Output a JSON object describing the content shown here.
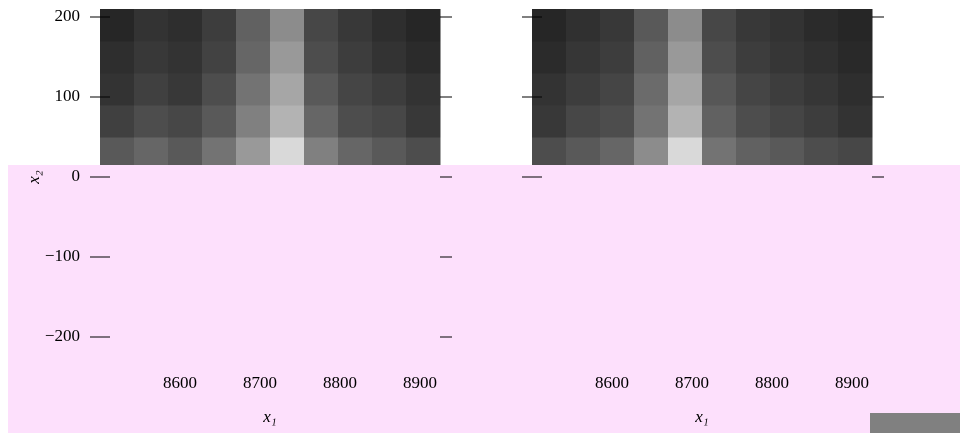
{
  "chart_data": [
    {
      "type": "heatmap",
      "ylabel": "x₂",
      "xlabel": "x₁",
      "x_edges": [
        8500,
        8542.5,
        8585,
        8627.5,
        8670,
        8712.5,
        8755,
        8797.5,
        8840,
        8882.5,
        8925
      ],
      "y_edges": [
        10,
        50,
        90,
        130,
        170,
        210
      ],
      "z": [
        [
          0.35,
          0.4,
          0.35,
          0.45,
          0.6,
          0.85,
          0.5,
          0.4,
          0.35,
          0.3
        ],
        [
          0.25,
          0.3,
          0.28,
          0.35,
          0.5,
          0.7,
          0.4,
          0.3,
          0.28,
          0.22
        ],
        [
          0.2,
          0.25,
          0.22,
          0.3,
          0.45,
          0.65,
          0.35,
          0.27,
          0.24,
          0.2
        ],
        [
          0.18,
          0.22,
          0.2,
          0.26,
          0.4,
          0.6,
          0.3,
          0.24,
          0.2,
          0.17
        ],
        [
          0.15,
          0.2,
          0.18,
          0.24,
          0.38,
          0.55,
          0.28,
          0.22,
          0.18,
          0.15
        ]
      ],
      "xticks": [
        8600,
        8700,
        8800,
        8900
      ],
      "yticks": [
        {
          "value": -200,
          "label": "−200"
        },
        {
          "value": -100,
          "label": "−100"
        },
        0,
        100,
        200
      ]
    },
    {
      "type": "heatmap",
      "xlabel": "x₁",
      "x_edges": [
        8500,
        8542.5,
        8585,
        8627.5,
        8670,
        8712.5,
        8755,
        8797.5,
        8840,
        8882.5,
        8925
      ],
      "y_edges": [
        10,
        50,
        90,
        130,
        170,
        210
      ],
      "z": [
        [
          0.3,
          0.35,
          0.4,
          0.55,
          0.85,
          0.45,
          0.38,
          0.35,
          0.3,
          0.28
        ],
        [
          0.22,
          0.28,
          0.3,
          0.45,
          0.7,
          0.38,
          0.3,
          0.27,
          0.24,
          0.2
        ],
        [
          0.2,
          0.24,
          0.27,
          0.42,
          0.65,
          0.34,
          0.27,
          0.24,
          0.21,
          0.18
        ],
        [
          0.17,
          0.21,
          0.24,
          0.38,
          0.6,
          0.3,
          0.24,
          0.21,
          0.19,
          0.16
        ],
        [
          0.15,
          0.19,
          0.22,
          0.35,
          0.55,
          0.28,
          0.22,
          0.2,
          0.17,
          0.15
        ]
      ],
      "xticks": [
        8600,
        8700,
        8800,
        8900
      ],
      "yticks": [
        0,
        100,
        200
      ]
    }
  ]
}
